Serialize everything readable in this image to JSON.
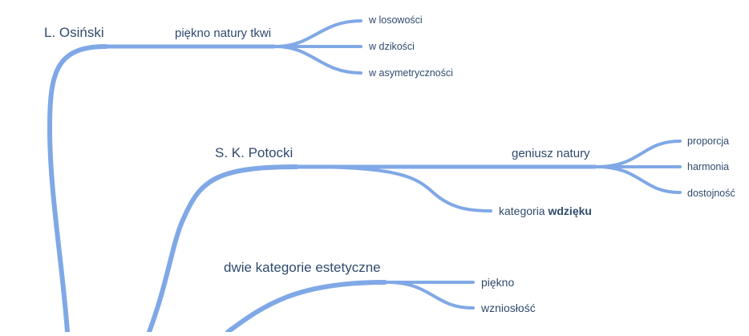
{
  "colors": {
    "branch": "#80a8e6",
    "text": "#2f4a6e",
    "background": "#ffffff"
  },
  "nodes": {
    "osinski": "L. Osiński",
    "piekno_natury": "piękno natury tkwi",
    "w_losowosci": "w losowości",
    "w_dzikosci": "w dzikości",
    "w_asymetrycznosci": "w asymetryczności",
    "potocki": "S. K. Potocki",
    "geniusz_natury": "geniusz natury",
    "proporcja": "proporcja",
    "harmonia": "harmonia",
    "dostojnosc": "dostojność",
    "kategoria_prefix": "kategoria ",
    "kategoria_bold": "wdzięku",
    "dwie_kategorie": "dwie kategorie estetyczne",
    "piekno": "piękno",
    "wzniosłosc": "wzniosłość"
  }
}
